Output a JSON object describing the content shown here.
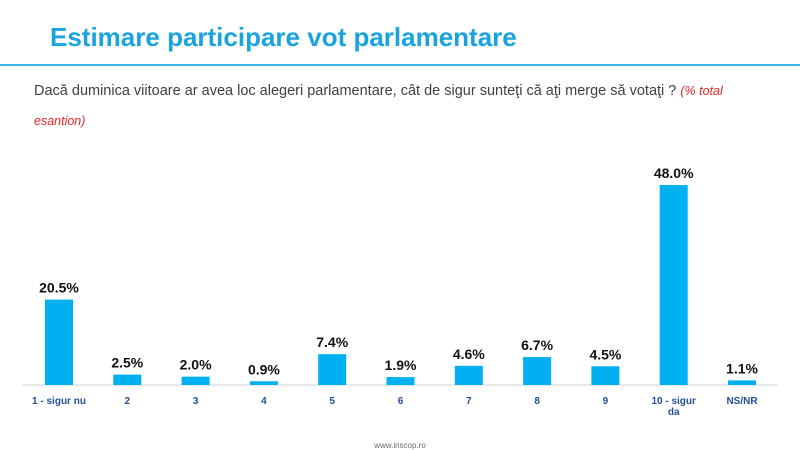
{
  "header": {
    "title": "Estimare participare vot parlamentare",
    "question": "Dacă duminica viitoare ar avea loc alegeri parlamentare, cât de sigur sunteţi că aţi merge să votaţi ?",
    "note": "(% total esantion)"
  },
  "footer": {
    "source": "www.inscop.ro"
  },
  "colors": {
    "bar": "#00b0f0",
    "title": "#1aa3dd",
    "axis_label": "#1f4e9a",
    "note": "#e8262a"
  },
  "chart_data": {
    "type": "bar",
    "categories": [
      "1 - sigur nu",
      "2",
      "3",
      "4",
      "5",
      "6",
      "7",
      "8",
      "9",
      "10 - sigur da",
      "NS/NR"
    ],
    "values": [
      20.5,
      2.5,
      2.0,
      0.9,
      7.4,
      1.9,
      4.6,
      6.7,
      4.5,
      48.0,
      1.1
    ],
    "value_labels": [
      "20.5%",
      "2.5%",
      "2.0%",
      "0.9%",
      "7.4%",
      "1.9%",
      "4.6%",
      "6.7%",
      "4.5%",
      "48.0%",
      "1.1%"
    ],
    "unit": "%",
    "ylim": [
      0,
      48
    ],
    "grid": false,
    "legend": "none"
  }
}
